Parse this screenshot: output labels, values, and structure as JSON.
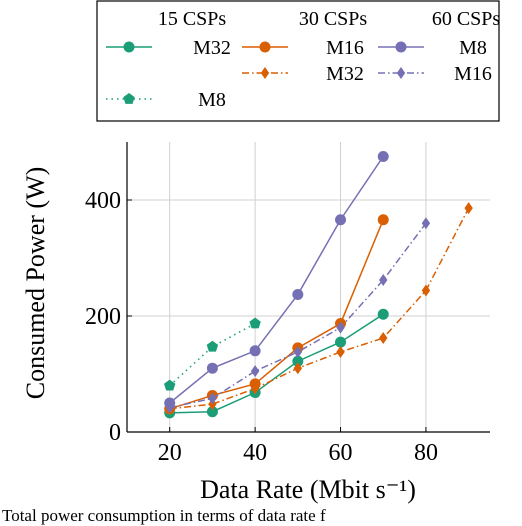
{
  "chart_data": {
    "type": "line",
    "xlabel": "Data Rate (Mbit s⁻¹)",
    "ylabel": "Consumed Power (W)",
    "xlim": [
      10,
      95
    ],
    "ylim": [
      0,
      500
    ],
    "x_ticks": [
      "20",
      "40",
      "60",
      "80"
    ],
    "y_ticks": [
      "0",
      "200",
      "400"
    ],
    "grid": "vertical and horizontal light gray",
    "legend": {
      "placement": "above plot",
      "group_headers": [
        "15 CSPs",
        "30 CSPs",
        "60 CSPs"
      ]
    },
    "series": [
      {
        "name": "M32",
        "group": "15 CSPs",
        "color": "#1b9e77",
        "style": "solid",
        "marker": "circle",
        "x": [
          20,
          30,
          40,
          50,
          60,
          70
        ],
        "values": [
          33,
          35,
          68,
          122,
          155,
          203
        ]
      },
      {
        "name": "M8",
        "group": "15 CSPs",
        "color": "#1b9e77",
        "style": "dotted",
        "marker": "pentagon",
        "x": [
          20,
          30,
          40
        ],
        "values": [
          80,
          147,
          187
        ]
      },
      {
        "name": "M16",
        "group": "30 CSPs",
        "color": "#d95f02",
        "style": "solid",
        "marker": "circle",
        "x": [
          20,
          30,
          40,
          50,
          60,
          70
        ],
        "values": [
          40,
          63,
          83,
          145,
          187,
          366
        ]
      },
      {
        "name": "M32",
        "group": "30 CSPs",
        "color": "#d95f02",
        "style": "dashdot",
        "marker": "diamond",
        "x": [
          20,
          30,
          40,
          50,
          60,
          70,
          80,
          90
        ],
        "values": [
          40,
          48,
          75,
          110,
          138,
          162,
          244,
          386
        ]
      },
      {
        "name": "M8",
        "group": "60 CSPs",
        "color": "#7570b3",
        "style": "solid",
        "marker": "circle",
        "x": [
          20,
          30,
          40,
          50,
          60,
          70
        ],
        "values": [
          50,
          110,
          140,
          237,
          366,
          475
        ]
      },
      {
        "name": "M16",
        "group": "60 CSPs",
        "color": "#7570b3",
        "style": "dashdot",
        "marker": "diamond",
        "x": [
          20,
          30,
          40,
          50,
          60,
          70,
          80
        ],
        "values": [
          42,
          58,
          105,
          138,
          180,
          262,
          360
        ]
      }
    ]
  },
  "cut_text": "Total power consumption in terms of data rate f"
}
